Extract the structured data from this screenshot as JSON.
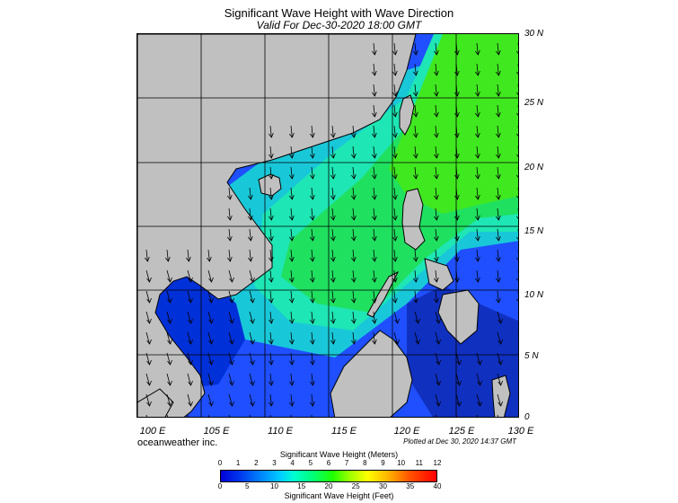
{
  "title": "Significant Wave Height with Wave Direction",
  "subtitle": "Valid For Dec-30-2020 18:00 GMT",
  "lat_labels": [
    "30 N",
    "25 N",
    "20 N",
    "15 N",
    "10 N",
    "5 N",
    "0"
  ],
  "lon_labels": [
    "100 E",
    "105 E",
    "110 E",
    "115 E",
    "120 E",
    "125 E",
    "130 E"
  ],
  "credit": "oceanweather inc.",
  "plotted": "Plotted at Dec 30, 2020 14:37 GMT",
  "colorbar": {
    "meters_title": "Significant Wave Height (Meters)",
    "feet_title": "Significant Wave Height (Feet)",
    "meters_ticks": [
      "0",
      "1",
      "2",
      "3",
      "4",
      "5",
      "6",
      "7",
      "8",
      "9",
      "10",
      "11",
      "12"
    ],
    "feet_ticks": [
      "0",
      "5",
      "10",
      "15",
      "20",
      "25",
      "30",
      "35",
      "40"
    ]
  },
  "colors": {
    "land": "#c0c0c0",
    "coast": "#000000",
    "grid": "#000000"
  }
}
